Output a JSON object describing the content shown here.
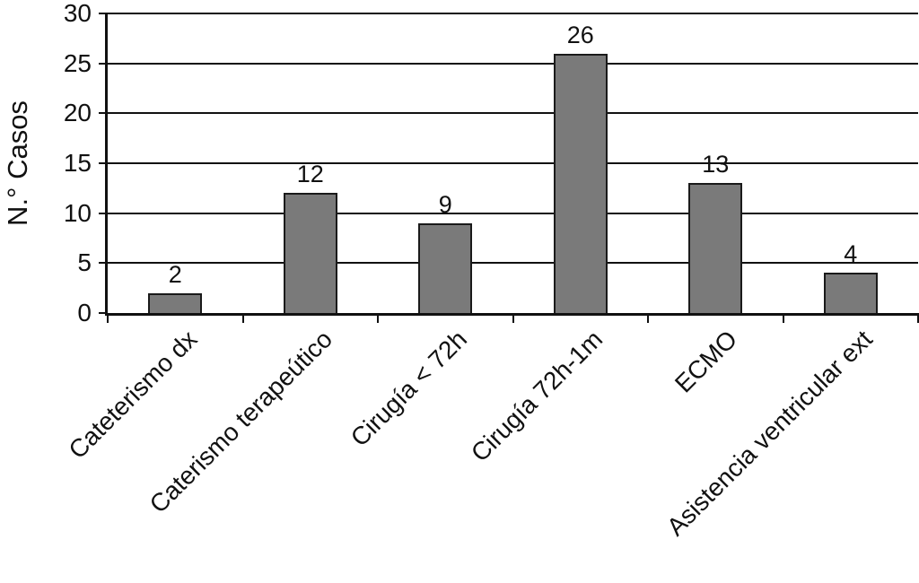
{
  "chart_data": {
    "type": "bar",
    "title": "",
    "xlabel": "",
    "ylabel": "N.° Casos",
    "categories": [
      "Cateterismo dx",
      "Caterismo terapeútico",
      "Cirugía < 72h",
      "Cirugía 72h-1m",
      "ECMO",
      "Asistencia ventricular ext"
    ],
    "values": [
      2,
      12,
      9,
      26,
      13,
      4
    ],
    "data_labels": [
      "2",
      "12",
      "9",
      "26",
      "13",
      "4"
    ],
    "ylim": [
      0,
      30
    ],
    "yticks": [
      0,
      5,
      10,
      15,
      20,
      25,
      30
    ],
    "grid": "horizontal",
    "legend_position": "none",
    "colors": {
      "bar_fill": "#7a7a7a",
      "bar_border": "#1a1a1a",
      "axis": "#111111",
      "gridline": "#111111",
      "background": "#ffffff",
      "text": "#111111"
    }
  }
}
